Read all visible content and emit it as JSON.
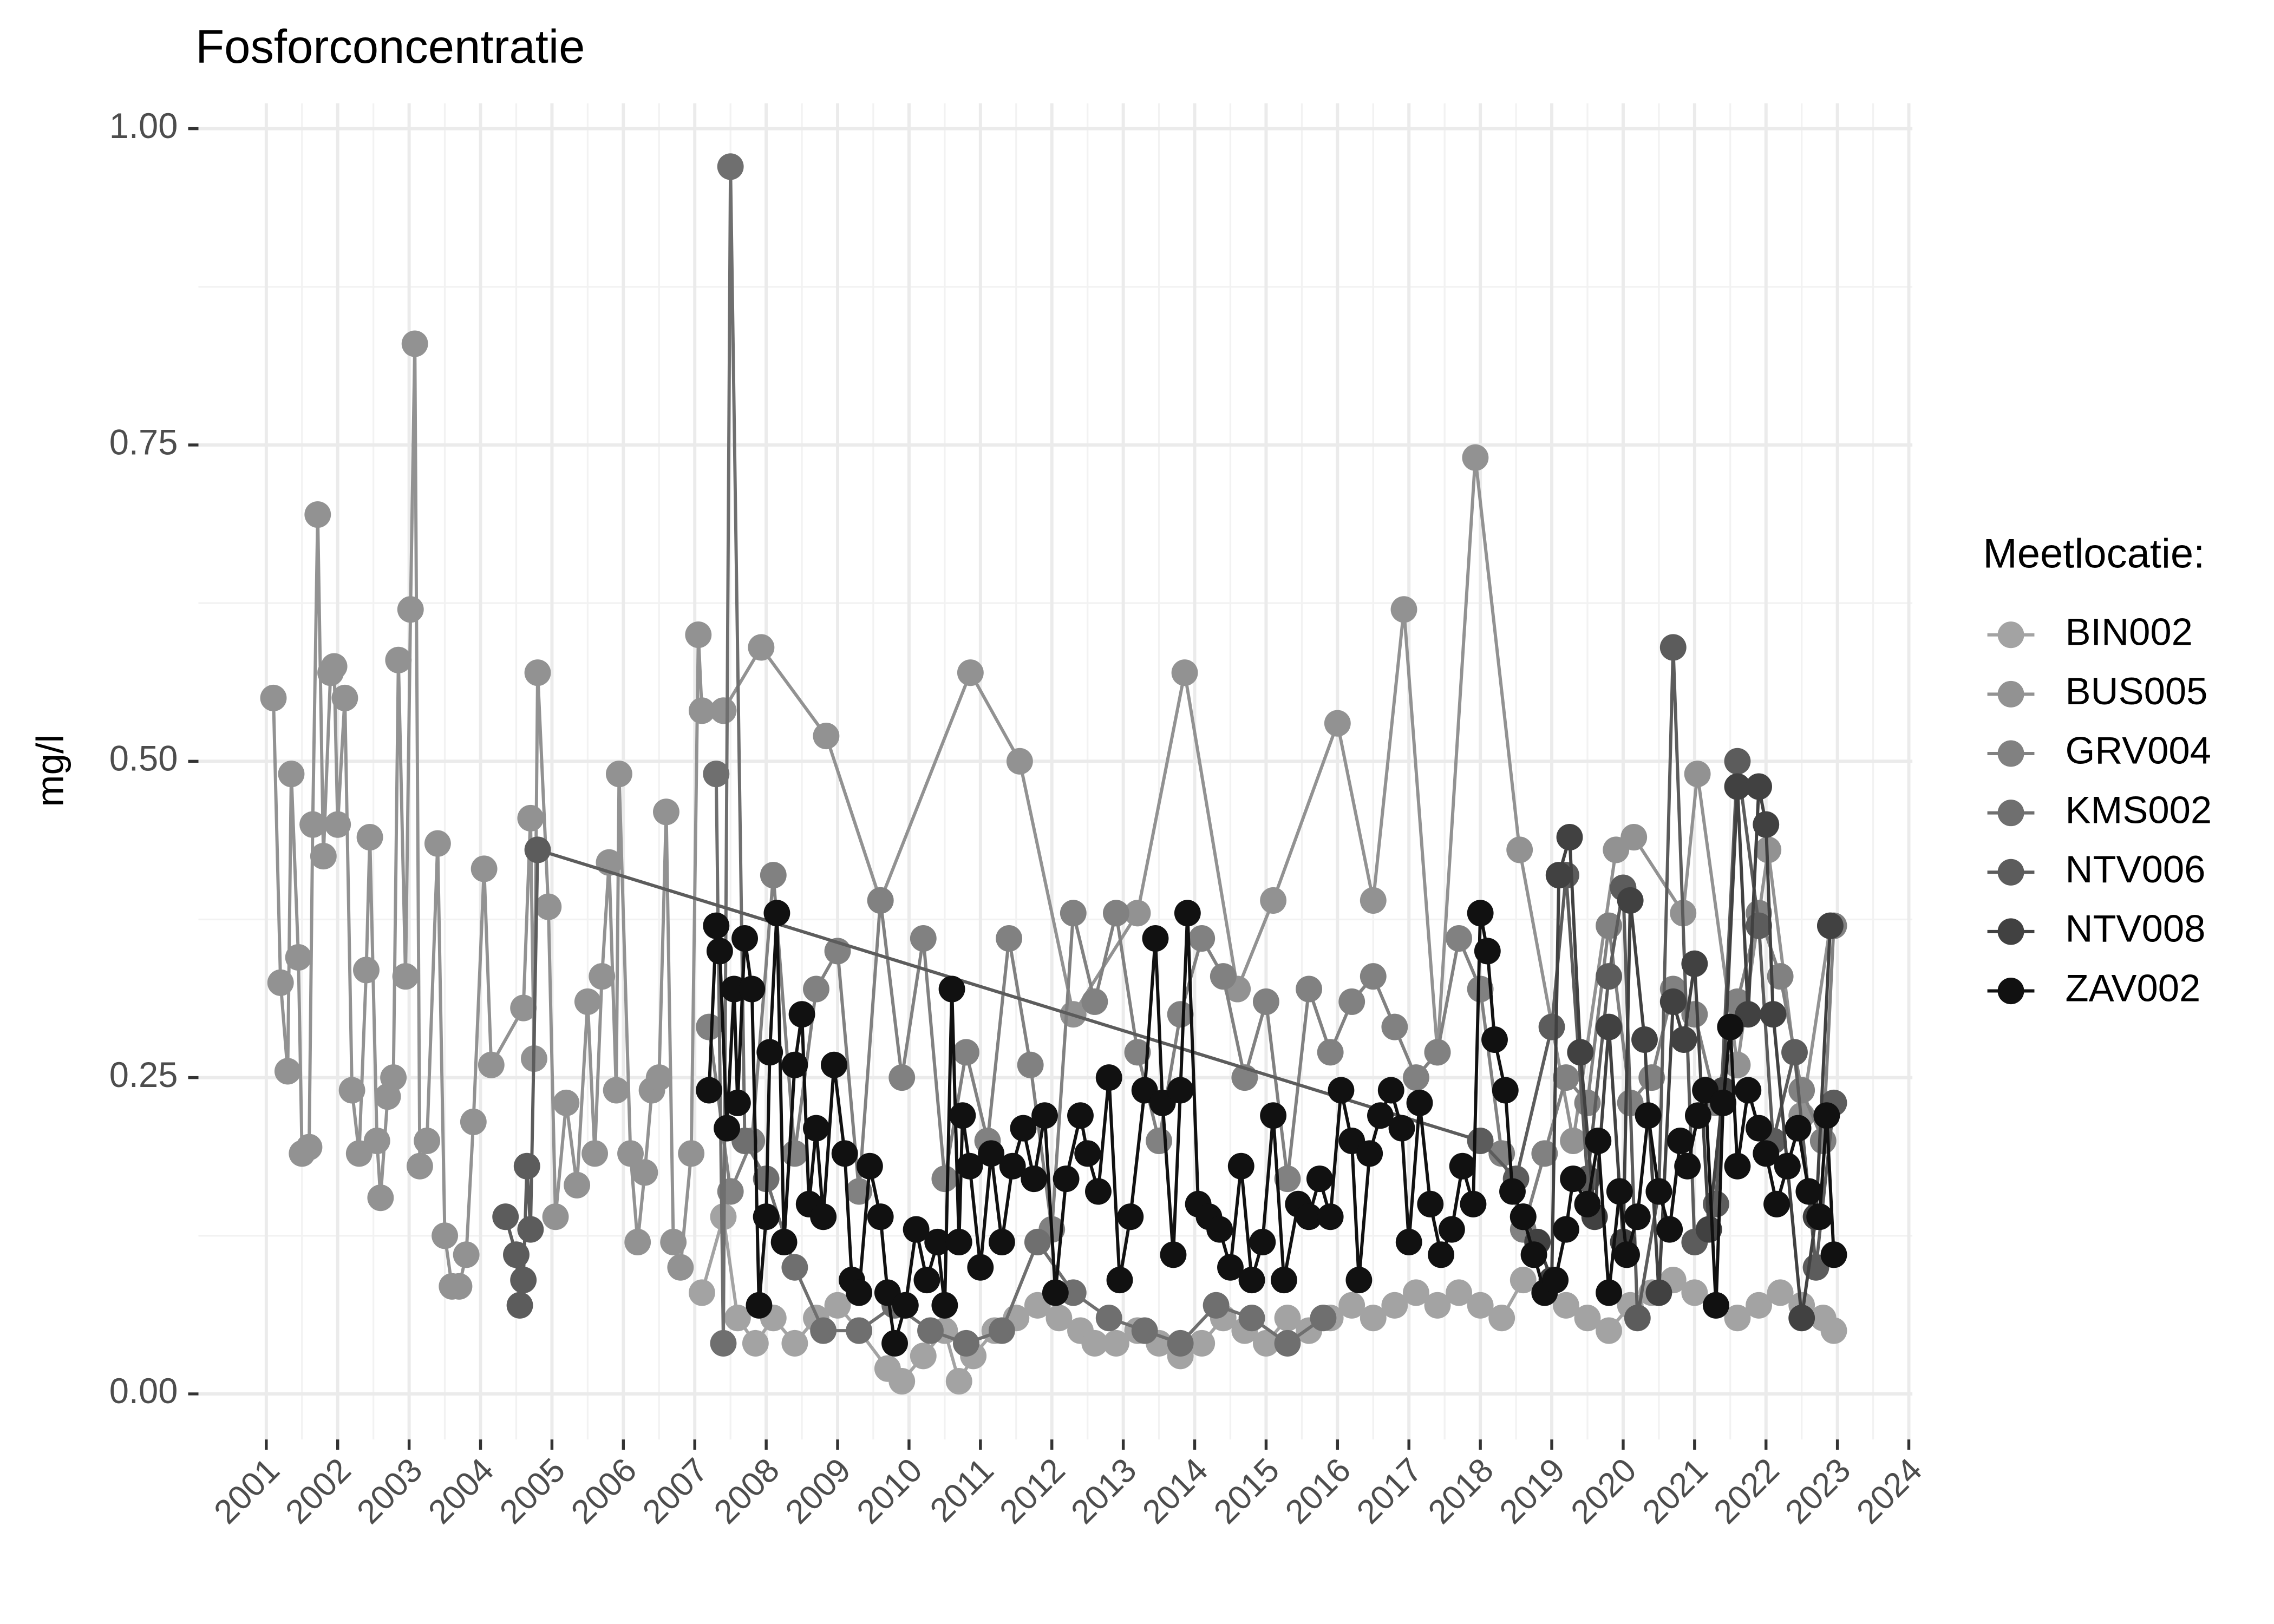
{
  "chart_data": {
    "type": "line",
    "title": "Fosforconcentratie",
    "y_label": "mg/l",
    "legend_title": "Meetlocatie:",
    "legend_position": "right",
    "grid": true,
    "xlim": [
      2000.05,
      2024.05
    ],
    "xticks": [
      2001,
      2002,
      2003,
      2004,
      2005,
      2006,
      2007,
      2008,
      2009,
      2010,
      2011,
      2012,
      2013,
      2014,
      2015,
      2016,
      2017,
      2018,
      2019,
      2020,
      2021,
      2022,
      2023,
      2024
    ],
    "ylim": [
      -0.036,
      1.02
    ],
    "yticks": [
      {
        "value": 0,
        "label": "0.00"
      },
      0.25,
      {
        "value": 0.5,
        "label": "0.50"
      },
      0.75,
      {
        "value": 1,
        "label": "1.00"
      }
    ],
    "series": [
      {
        "name": "BIN002",
        "color": "#a3a3a3",
        "x": [
          2007.1,
          2007.4,
          2007.6,
          2007.85,
          2008.1,
          2008.4,
          2008.7,
          2009.0,
          2009.3,
          2009.7,
          2009.9,
          2010.2,
          2010.5,
          2010.7,
          2010.9,
          2011.2,
          2011.5,
          2011.8,
          2012.1,
          2012.4,
          2012.6,
          2012.9,
          2013.2,
          2013.5,
          2013.8,
          2014.1,
          2014.4,
          2014.7,
          2015.0,
          2015.3,
          2015.6,
          2015.9,
          2016.2,
          2016.5,
          2016.8,
          2017.1,
          2017.4,
          2017.7,
          2018.0,
          2018.3,
          2018.6,
          2018.9,
          2019.2,
          2019.5,
          2019.8,
          2020.1,
          2020.4,
          2020.7,
          2021.0,
          2021.3,
          2021.6,
          2021.9,
          2022.2,
          2022.5,
          2022.8,
          2022.95
        ],
        "values": [
          0.08,
          0.14,
          0.06,
          0.04,
          0.06,
          0.04,
          0.06,
          0.07,
          0.05,
          0.02,
          0.01,
          0.03,
          0.05,
          0.01,
          0.03,
          0.05,
          0.06,
          0.07,
          0.06,
          0.05,
          0.04,
          0.04,
          0.05,
          0.04,
          0.03,
          0.04,
          0.06,
          0.05,
          0.04,
          0.06,
          0.05,
          0.06,
          0.07,
          0.06,
          0.07,
          0.08,
          0.07,
          0.08,
          0.07,
          0.06,
          0.09,
          0.08,
          0.07,
          0.06,
          0.05,
          0.07,
          0.08,
          0.09,
          0.08,
          0.07,
          0.06,
          0.07,
          0.08,
          0.07,
          0.06,
          0.05
        ]
      },
      {
        "name": "BUS005",
        "color": "#929292",
        "x": [
          2001.1,
          2001.2,
          2001.3,
          2001.35,
          2001.45,
          2001.5,
          2001.6,
          2001.65,
          2001.72,
          2001.8,
          2001.9,
          2001.95,
          2002.0,
          2002.1,
          2002.2,
          2002.3,
          2002.4,
          2002.45,
          2002.55,
          2002.6,
          2002.7,
          2002.78,
          2002.85,
          2002.95,
          2003.02,
          2003.08,
          2003.15,
          2003.25,
          2003.4,
          2003.5,
          2003.6,
          2003.7,
          2003.8,
          2003.9,
          2004.05,
          2004.15,
          2004.6,
          2004.7,
          2004.75,
          2004.8,
          2004.95,
          2005.05,
          2005.2,
          2005.35,
          2005.5,
          2005.6,
          2005.7,
          2005.8,
          2005.9,
          2005.94,
          2006.1,
          2006.2,
          2006.3,
          2006.4,
          2006.5,
          2006.6,
          2006.7,
          2006.8,
          2006.95,
          2007.05,
          2007.1,
          2007.4,
          2007.93,
          2008.84,
          2009.6,
          2010.86,
          2011.55,
          2012.3,
          2013.2,
          2013.86,
          2014.6,
          2015.1,
          2016.0,
          2016.5,
          2016.93,
          2017.4,
          2017.93,
          2018.55,
          2019.3,
          2019.9,
          2020.15,
          2020.84,
          2021.04,
          2021.6,
          2022.03,
          2022.5,
          2022.9
        ],
        "values": [
          0.55,
          0.325,
          0.255,
          0.49,
          0.345,
          0.19,
          0.195,
          0.45,
          0.695,
          0.425,
          0.57,
          0.575,
          0.45,
          0.55,
          0.24,
          0.19,
          0.335,
          0.44,
          0.2,
          0.155,
          0.235,
          0.25,
          0.58,
          0.33,
          0.62,
          0.83,
          0.18,
          0.2,
          0.435,
          0.125,
          0.085,
          0.085,
          0.11,
          0.215,
          0.415,
          0.26,
          0.305,
          0.455,
          0.265,
          0.57,
          0.385,
          0.14,
          0.23,
          0.165,
          0.31,
          0.19,
          0.33,
          0.42,
          0.24,
          0.49,
          0.19,
          0.12,
          0.175,
          0.24,
          0.25,
          0.46,
          0.12,
          0.1,
          0.19,
          0.6,
          0.54,
          0.54,
          0.59,
          0.52,
          0.39,
          0.57,
          0.5,
          0.3,
          0.38,
          0.57,
          0.32,
          0.39,
          0.53,
          0.39,
          0.62,
          0.27,
          0.74,
          0.43,
          0.2,
          0.43,
          0.44,
          0.38,
          0.49,
          0.26,
          0.43,
          0.22,
          0.37
        ]
      },
      {
        "name": "GRV004",
        "color": "#818181",
        "x": [
          2007.2,
          2007.5,
          2007.8,
          2008.1,
          2008.4,
          2008.7,
          2009.0,
          2009.3,
          2009.6,
          2009.9,
          2010.2,
          2010.5,
          2010.8,
          2011.1,
          2011.4,
          2011.7,
          2012.0,
          2012.3,
          2012.6,
          2012.9,
          2013.2,
          2013.5,
          2013.8,
          2014.1,
          2014.4,
          2014.7,
          2015.0,
          2015.3,
          2015.6,
          2015.9,
          2016.2,
          2016.5,
          2016.8,
          2017.1,
          2017.4,
          2017.7,
          2018.0,
          2018.3,
          2018.6,
          2018.9,
          2019.2,
          2019.5,
          2019.8,
          2020.1,
          2020.4,
          2020.7,
          2021.0,
          2021.3,
          2021.6,
          2021.9,
          2022.2,
          2022.5,
          2022.8,
          2022.95
        ],
        "values": [
          0.29,
          0.16,
          0.2,
          0.41,
          0.19,
          0.32,
          0.35,
          0.16,
          0.39,
          0.25,
          0.36,
          0.17,
          0.27,
          0.2,
          0.36,
          0.26,
          0.13,
          0.38,
          0.31,
          0.38,
          0.27,
          0.2,
          0.3,
          0.36,
          0.33,
          0.25,
          0.31,
          0.17,
          0.32,
          0.27,
          0.31,
          0.33,
          0.29,
          0.25,
          0.27,
          0.36,
          0.32,
          0.19,
          0.13,
          0.19,
          0.25,
          0.23,
          0.37,
          0.23,
          0.25,
          0.32,
          0.3,
          0.23,
          0.31,
          0.38,
          0.33,
          0.24,
          0.2,
          0.37
        ]
      },
      {
        "name": "KMS002",
        "color": "#6f6f6f",
        "x": [
          2007.3,
          2007.4,
          2007.5,
          2007.7,
          2008.0,
          2008.4,
          2008.8,
          2009.3,
          2009.8,
          2010.3,
          2010.8,
          2011.3,
          2011.8,
          2012.3,
          2012.8,
          2013.3,
          2013.8,
          2014.3,
          2014.8,
          2015.3,
          2015.8
        ],
        "values": [
          0.49,
          0.04,
          0.97,
          0.2,
          0.17,
          0.1,
          0.05,
          0.05,
          0.07,
          0.05,
          0.04,
          0.05,
          0.12,
          0.08,
          0.06,
          0.05,
          0.04,
          0.07,
          0.06,
          0.04,
          0.06
        ]
      },
      {
        "name": "NTV006",
        "color": "#5c5c5c",
        "x": [
          2004.35,
          2004.5,
          2004.55,
          2004.6,
          2004.65,
          2004.7,
          2004.8,
          2018.0,
          2018.5,
          2019.0,
          2019.2,
          2019.5,
          2019.8,
          2020.0,
          2020.2,
          2020.5,
          2020.7,
          2021.0,
          2021.3,
          2021.6,
          2021.9,
          2022.1,
          2022.4,
          2022.7,
          2022.95
        ],
        "values": [
          0.14,
          0.11,
          0.07,
          0.09,
          0.18,
          0.13,
          0.43,
          0.2,
          0.17,
          0.29,
          0.41,
          0.17,
          0.33,
          0.4,
          0.06,
          0.16,
          0.59,
          0.12,
          0.15,
          0.5,
          0.37,
          0.2,
          0.27,
          0.1,
          0.23
        ]
      },
      {
        "name": "NTV008",
        "color": "#414141",
        "x": [
          2018.6,
          2018.8,
          2019.0,
          2019.1,
          2019.25,
          2019.4,
          2019.6,
          2019.8,
          2020.0,
          2020.1,
          2020.3,
          2020.5,
          2020.7,
          2020.85,
          2021.0,
          2021.2,
          2021.4,
          2021.6,
          2021.75,
          2021.9,
          2022.0,
          2022.1,
          2022.3,
          2022.5,
          2022.7,
          2022.9
        ],
        "values": [
          0.14,
          0.12,
          0.09,
          0.41,
          0.44,
          0.27,
          0.14,
          0.29,
          0.12,
          0.39,
          0.28,
          0.08,
          0.31,
          0.28,
          0.34,
          0.13,
          0.24,
          0.48,
          0.3,
          0.48,
          0.45,
          0.3,
          0.18,
          0.06,
          0.14,
          0.37
        ]
      },
      {
        "name": "ZAV002",
        "color": "#111111",
        "x": [
          2007.2,
          2007.3,
          2007.35,
          2007.45,
          2007.55,
          2007.6,
          2007.7,
          2007.8,
          2007.9,
          2008.0,
          2008.05,
          2008.15,
          2008.25,
          2008.4,
          2008.5,
          2008.6,
          2008.7,
          2008.8,
          2008.95,
          2009.1,
          2009.2,
          2009.3,
          2009.45,
          2009.6,
          2009.7,
          2009.8,
          2009.95,
          2010.1,
          2010.25,
          2010.4,
          2010.5,
          2010.6,
          2010.7,
          2010.75,
          2010.85,
          2011.0,
          2011.15,
          2011.3,
          2011.45,
          2011.6,
          2011.75,
          2011.9,
          2012.05,
          2012.2,
          2012.4,
          2012.5,
          2012.65,
          2012.8,
          2012.95,
          2013.1,
          2013.3,
          2013.45,
          2013.55,
          2013.7,
          2013.8,
          2013.9,
          2014.05,
          2014.2,
          2014.35,
          2014.5,
          2014.65,
          2014.8,
          2014.95,
          2015.1,
          2015.25,
          2015.45,
          2015.6,
          2015.75,
          2015.9,
          2016.05,
          2016.2,
          2016.3,
          2016.45,
          2016.6,
          2016.75,
          2016.9,
          2017.0,
          2017.15,
          2017.3,
          2017.45,
          2017.6,
          2017.75,
          2017.9,
          2018.0,
          2018.1,
          2018.2,
          2018.35,
          2018.45,
          2018.6,
          2018.75,
          2018.9,
          2019.05,
          2019.2,
          2019.3,
          2019.5,
          2019.65,
          2019.8,
          2019.95,
          2020.05,
          2020.2,
          2020.35,
          2020.5,
          2020.65,
          2020.8,
          2020.9,
          2021.05,
          2021.15,
          2021.3,
          2021.4,
          2021.5,
          2021.6,
          2021.75,
          2021.9,
          2022.0,
          2022.15,
          2022.3,
          2022.45,
          2022.6,
          2022.75,
          2022.85,
          2022.95
        ],
        "values": [
          0.24,
          0.37,
          0.35,
          0.21,
          0.32,
          0.23,
          0.36,
          0.32,
          0.07,
          0.14,
          0.27,
          0.38,
          0.12,
          0.26,
          0.3,
          0.15,
          0.21,
          0.14,
          0.26,
          0.19,
          0.09,
          0.08,
          0.18,
          0.14,
          0.08,
          0.04,
          0.07,
          0.13,
          0.09,
          0.12,
          0.07,
          0.32,
          0.12,
          0.22,
          0.18,
          0.1,
          0.19,
          0.12,
          0.18,
          0.21,
          0.17,
          0.22,
          0.08,
          0.17,
          0.22,
          0.19,
          0.16,
          0.25,
          0.09,
          0.14,
          0.24,
          0.36,
          0.23,
          0.11,
          0.24,
          0.38,
          0.15,
          0.14,
          0.13,
          0.1,
          0.18,
          0.09,
          0.12,
          0.22,
          0.09,
          0.15,
          0.14,
          0.17,
          0.14,
          0.24,
          0.2,
          0.09,
          0.19,
          0.22,
          0.24,
          0.21,
          0.12,
          0.23,
          0.15,
          0.11,
          0.13,
          0.18,
          0.15,
          0.38,
          0.35,
          0.28,
          0.24,
          0.16,
          0.14,
          0.11,
          0.08,
          0.09,
          0.13,
          0.17,
          0.15,
          0.2,
          0.08,
          0.16,
          0.11,
          0.14,
          0.22,
          0.16,
          0.13,
          0.2,
          0.18,
          0.22,
          0.24,
          0.07,
          0.23,
          0.29,
          0.18,
          0.24,
          0.21,
          0.19,
          0.15,
          0.18,
          0.21,
          0.16,
          0.14,
          0.22,
          0.11
        ]
      }
    ]
  }
}
